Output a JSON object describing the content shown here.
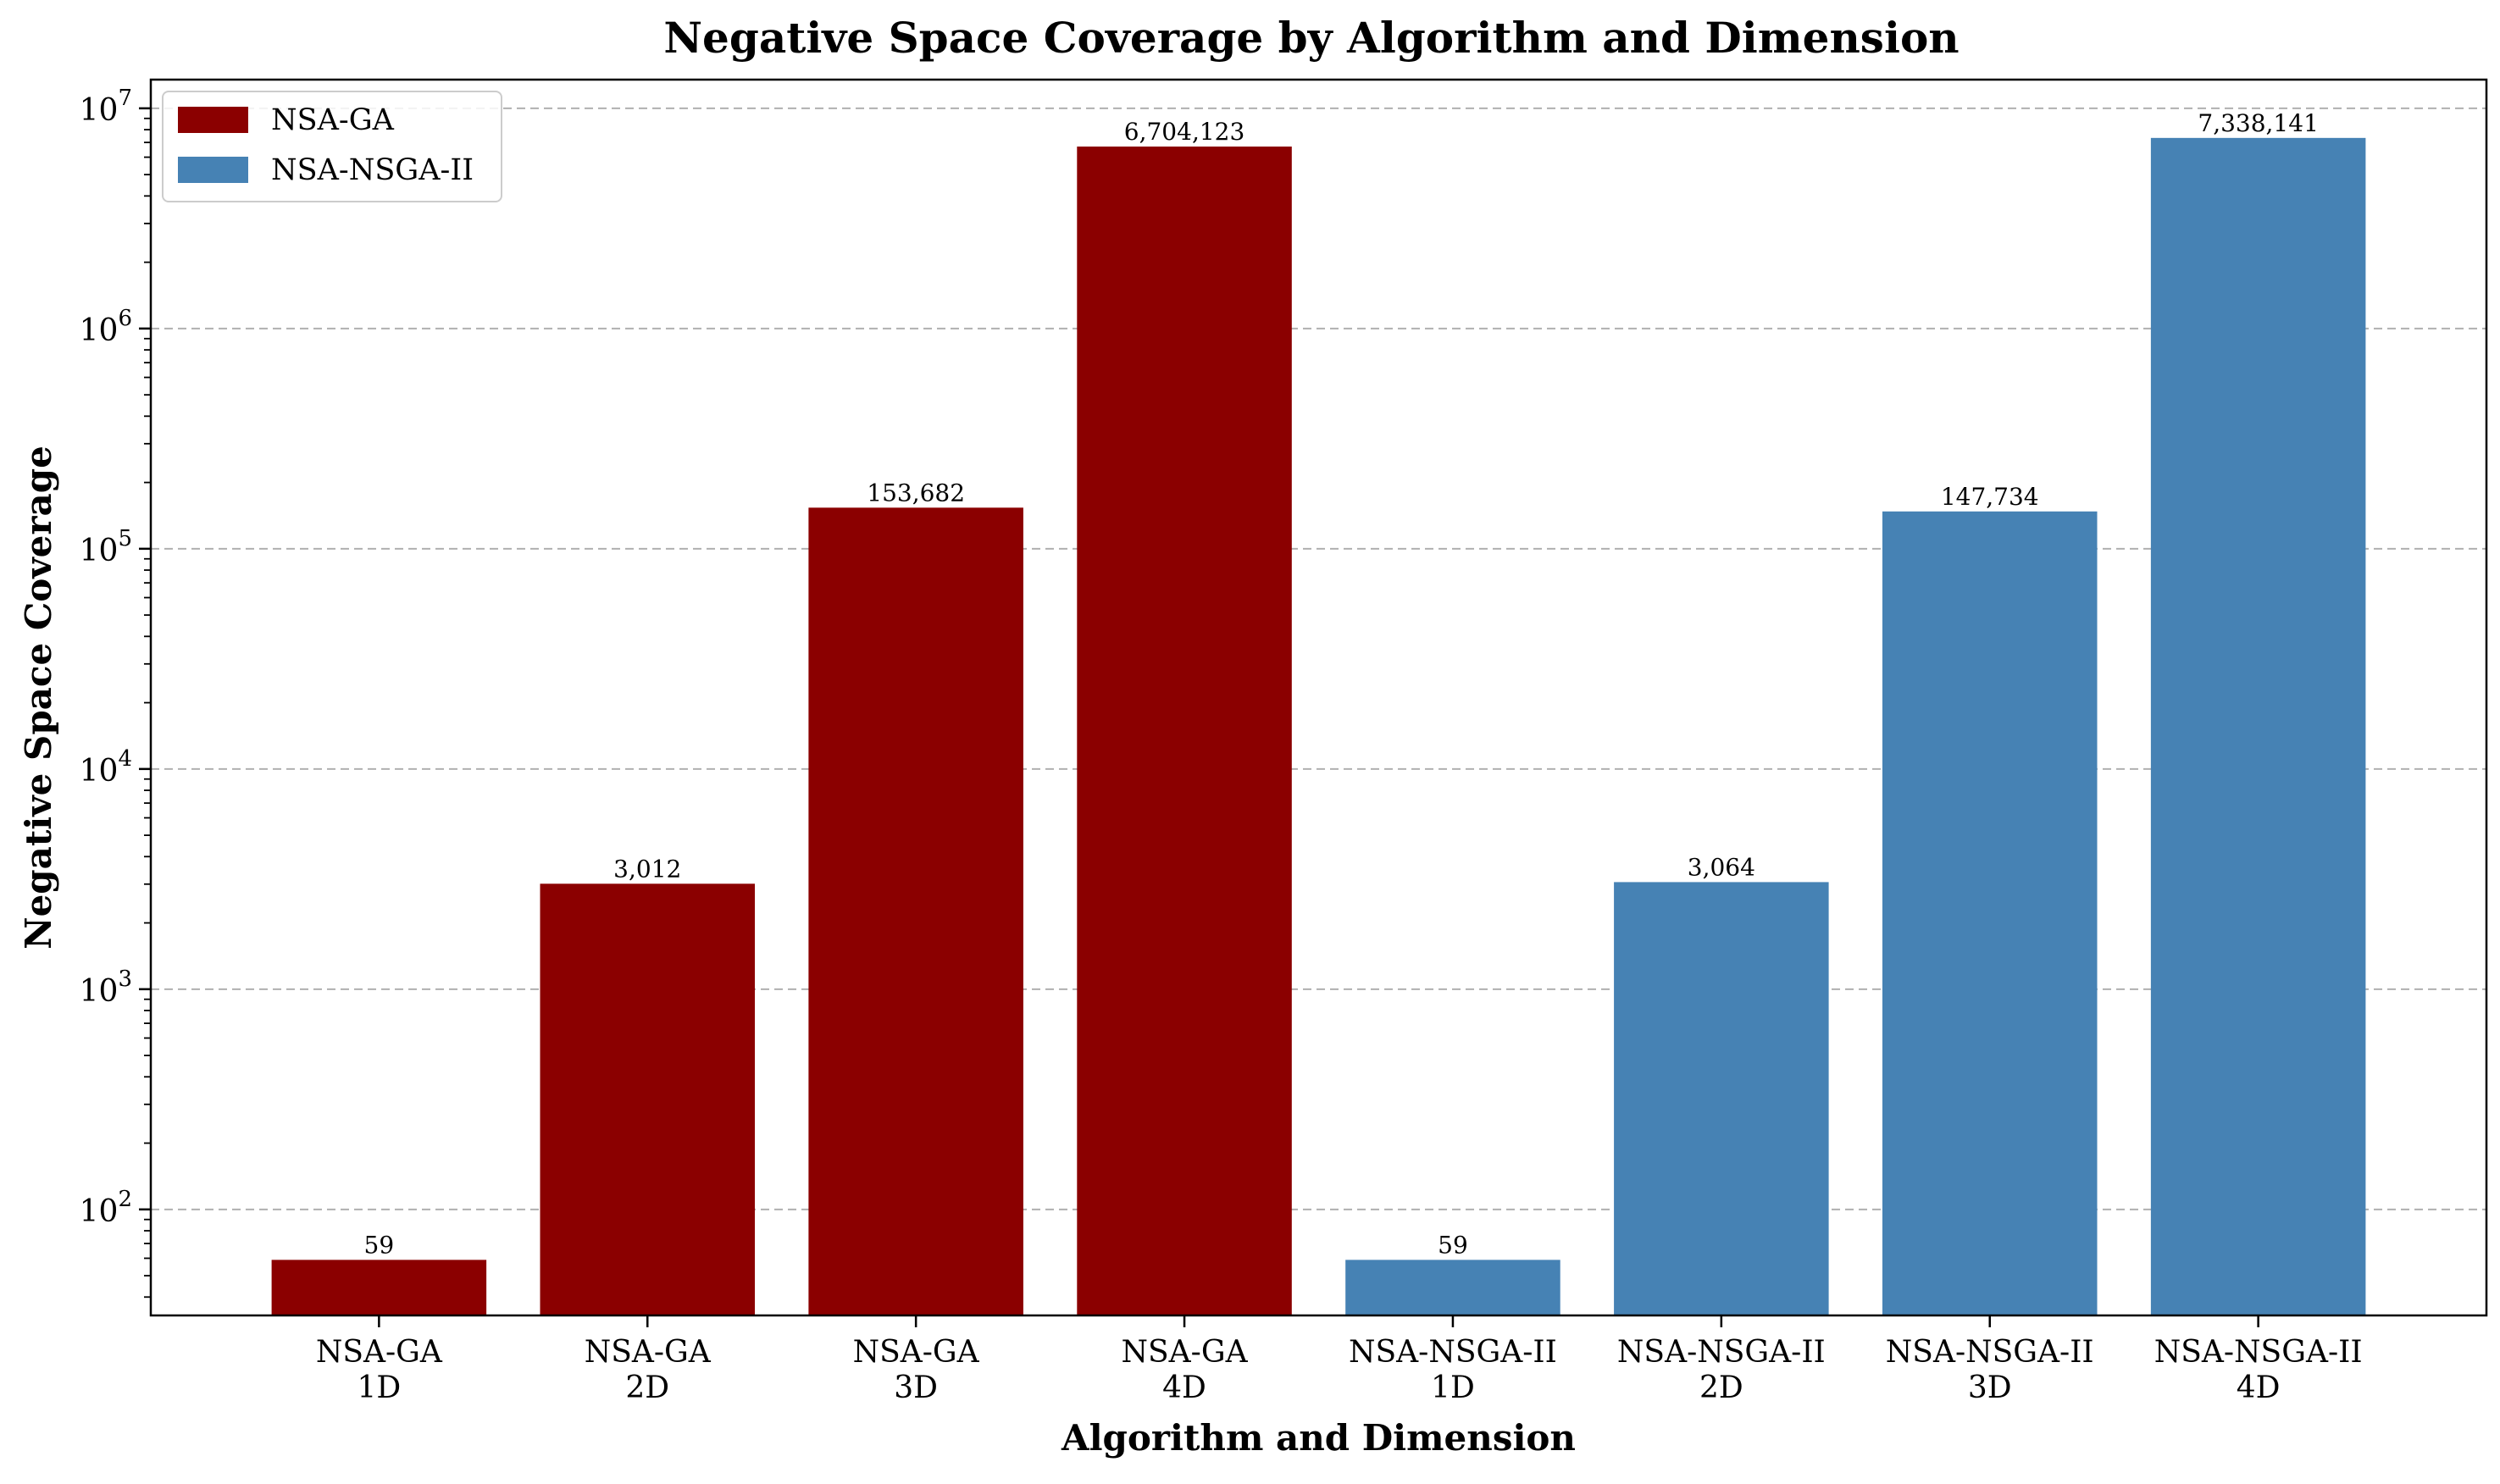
{
  "chart_data": {
    "type": "bar",
    "title": "Negative Space Coverage by Algorithm and Dimension",
    "xlabel": "Algorithm and Dimension",
    "ylabel": "Negative Space Coverage",
    "yscale": "log",
    "ylim": [
      33,
      13500000
    ],
    "grid": "y-major, dashed",
    "legend_position": "top-left",
    "categories": [
      [
        "NSA-GA",
        "1D"
      ],
      [
        "NSA-GA",
        "2D"
      ],
      [
        "NSA-GA",
        "3D"
      ],
      [
        "NSA-GA",
        "4D"
      ],
      [
        "NSA-NSGA-II",
        "1D"
      ],
      [
        "NSA-NSGA-II",
        "2D"
      ],
      [
        "NSA-NSGA-II",
        "3D"
      ],
      [
        "NSA-NSGA-II",
        "4D"
      ]
    ],
    "values": [
      59,
      3012,
      153682,
      6704123,
      59,
      3064,
      147734,
      7338141
    ],
    "value_labels": [
      "59",
      "3,012",
      "153,682",
      "6,704,123",
      "59",
      "3,064",
      "147,734",
      "7,338,141"
    ],
    "bar_series": [
      0,
      0,
      0,
      0,
      1,
      1,
      1,
      1
    ],
    "series": [
      {
        "name": "NSA-GA",
        "color": "#8b0000"
      },
      {
        "name": "NSA-NSGA-II",
        "color": "#4682b4"
      }
    ],
    "y_ticks": [
      {
        "value": 100,
        "base": "10",
        "exp": "2"
      },
      {
        "value": 1000,
        "base": "10",
        "exp": "3"
      },
      {
        "value": 10000,
        "base": "10",
        "exp": "4"
      },
      {
        "value": 100000,
        "base": "10",
        "exp": "5"
      },
      {
        "value": 1000000,
        "base": "10",
        "exp": "6"
      },
      {
        "value": 10000000,
        "base": "10",
        "exp": "7"
      }
    ]
  }
}
